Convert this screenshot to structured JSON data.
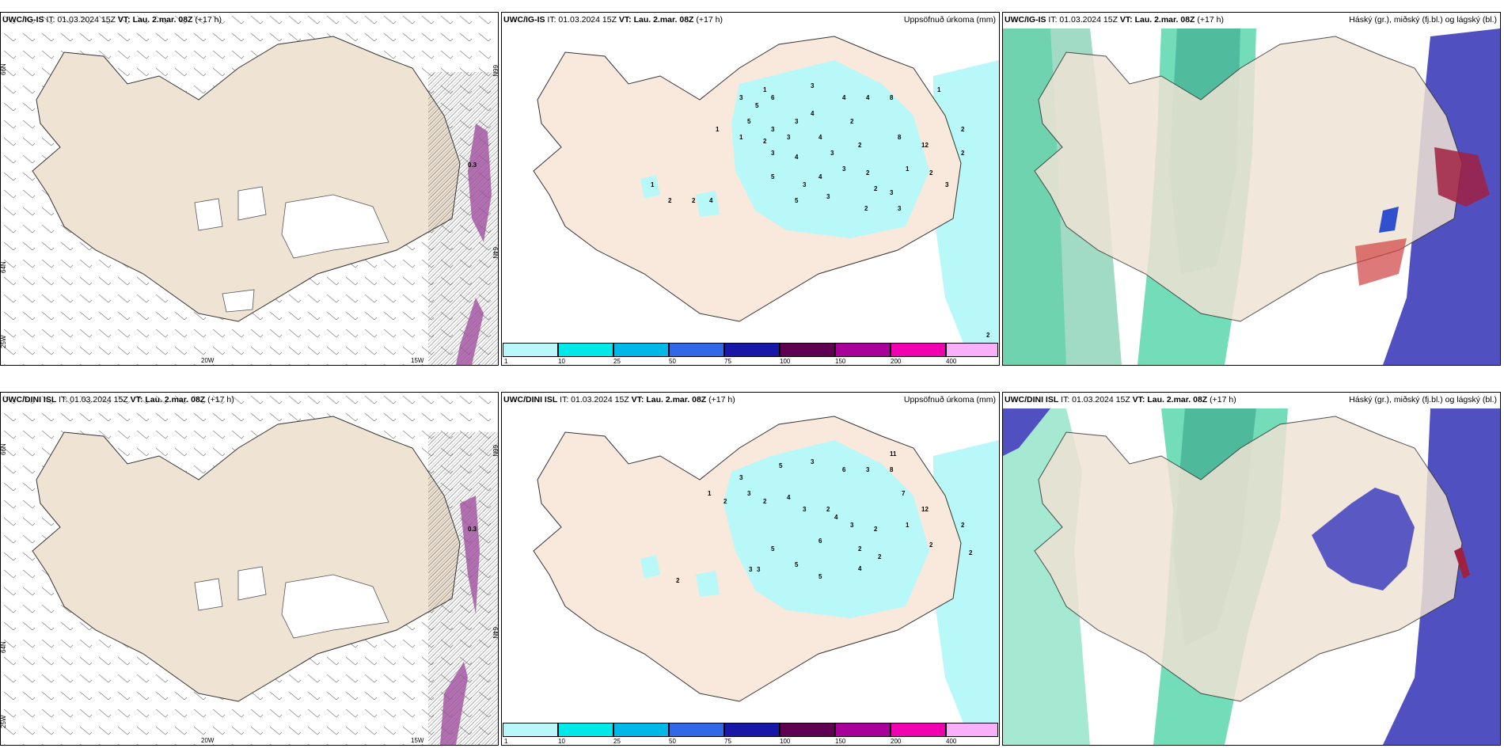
{
  "top": {
    "wind": {
      "model": "UWC/IG-IS",
      "it_label": "IT: 01.03.2024 15Z",
      "vt_label": "VT: Lau. 2.mar. 08Z",
      "lead": "(+17 h)",
      "lat_labels": [
        "66N",
        "64N"
      ],
      "lat_labels_right": [
        "66N",
        "64N"
      ],
      "lon_labels": [
        "25W",
        "20W",
        "15W"
      ],
      "values": [
        "0.3"
      ]
    },
    "precip": {
      "model": "UWC/IG-IS",
      "it_label": "IT: 01.03.2024 15Z",
      "vt_label": "VT: Lau. 2.mar. 08Z",
      "lead": "(+17 h)",
      "right_title": "Uppsöfnuð úrkoma (mm)",
      "values": [
        "1",
        "3",
        "5",
        "6",
        "3",
        "4",
        "4",
        "8",
        "1",
        "5",
        "3",
        "3",
        "4",
        "1",
        "2",
        "3",
        "4",
        "2",
        "3",
        "8",
        "1",
        "4",
        "2",
        "3",
        "3",
        "2",
        "4",
        "12",
        "2",
        "5",
        "3",
        "3",
        "5",
        "1",
        "2",
        "3",
        "3",
        "4",
        "2",
        "2",
        "3",
        "2",
        "2",
        "2",
        "1",
        "2"
      ]
    },
    "cloud": {
      "model": "UWC/IG-IS",
      "it_label": "IT: 01.03.2024 15Z",
      "vt_label": "VT: Lau. 2.mar. 08Z",
      "lead": "(+17 h)",
      "right_title": "Háský (gr.), miðský (fj.bl.) og lágský (bl.)"
    }
  },
  "bottom": {
    "wind": {
      "model": "UWC/DINI ISL",
      "it_label": "IT: 01.03.2024 15Z",
      "vt_label": "VT: Lau. 2.mar. 08Z",
      "lead": "(+17 h)",
      "lat_labels": [
        "66N",
        "64N"
      ],
      "lat_labels_right": [
        "66N",
        "64N"
      ],
      "lon_labels": [
        "25W",
        "20W",
        "15W"
      ],
      "values": [
        "0.3"
      ]
    },
    "precip": {
      "model": "UWC/DINI ISL",
      "it_label": "IT: 01.03.2024 15Z",
      "vt_label": "VT: Lau. 2.mar. 08Z",
      "lead": "(+17 h)",
      "right_title": "Uppsöfnuð úrkoma (mm)",
      "values": [
        "11",
        "3",
        "5",
        "3",
        "6",
        "3",
        "8",
        "1",
        "2",
        "3",
        "2",
        "4",
        "7",
        "3",
        "2",
        "4",
        "3",
        "12",
        "2",
        "2",
        "1",
        "5",
        "2",
        "6",
        "2",
        "2",
        "3",
        "3",
        "5",
        "4",
        "2",
        "5",
        "2"
      ]
    },
    "cloud": {
      "model": "UWC/DINI ISL",
      "it_label": "IT: 01.03.2024 15Z",
      "vt_label": "VT: Lau. 2.mar. 08Z",
      "lead": "(+17 h)",
      "right_title": "Háský (gr.), miðský (fj.bl.) og lágský (bl.)"
    }
  },
  "colorbar": {
    "ticks": [
      "1",
      "10",
      "25",
      "50",
      "75",
      "100",
      "150",
      "200",
      "400"
    ],
    "colors": [
      "#b8f8f8",
      "#00e8e8",
      "#00b8e8",
      "#3068e8",
      "#1818a8",
      "#600050",
      "#a80098",
      "#f000b0",
      "#f8b0f8"
    ]
  },
  "colors": {
    "land": "#efe3d4",
    "precip_land": "#f8e9dc",
    "snowfree": "#ffffff",
    "precip_light": "#b8f8f8",
    "high_cloud": "#00c080",
    "mid_cloud": "#6060c8",
    "low_cloud": "#a02040",
    "wind_hatch_accent": "#c040c0"
  }
}
